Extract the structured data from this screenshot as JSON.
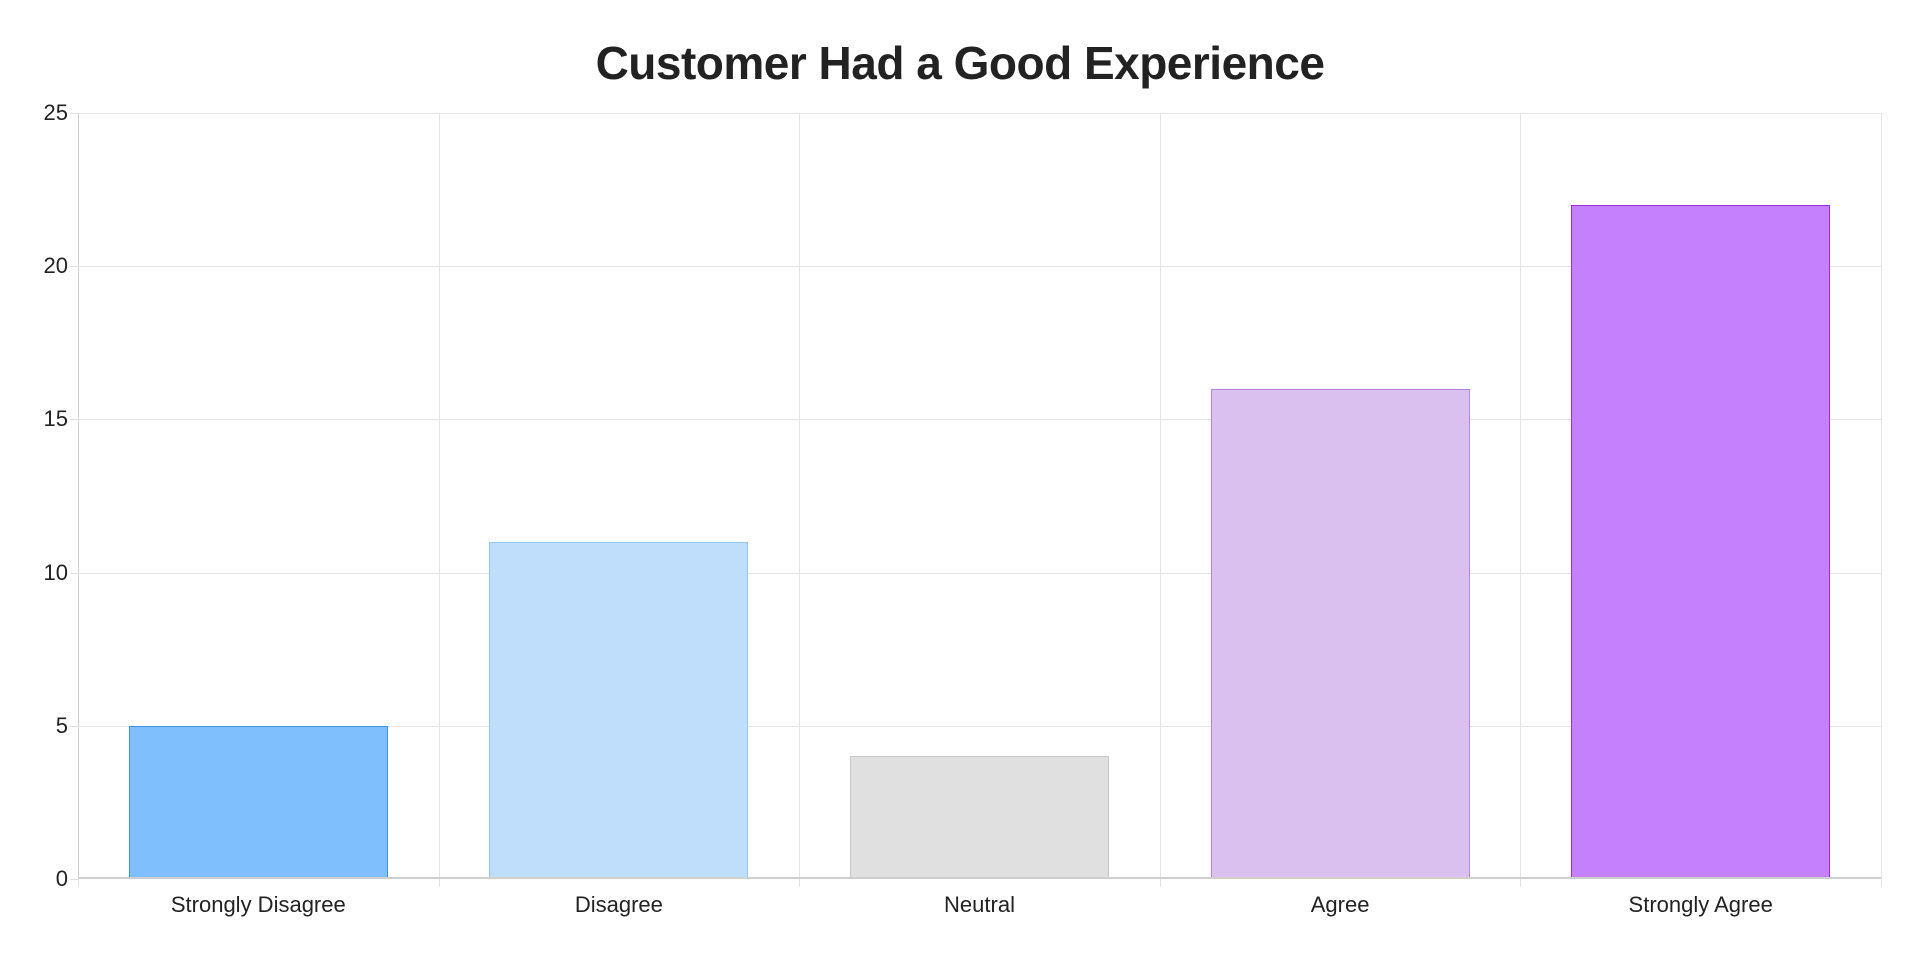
{
  "chart_data": {
    "type": "bar",
    "title": "Customer Had a Good Experience",
    "xlabel": "",
    "ylabel": "",
    "categories": [
      "Strongly Disagree",
      "Disagree",
      "Neutral",
      "Agree",
      "Strongly Agree"
    ],
    "values": [
      5,
      11,
      4,
      16,
      22
    ],
    "ylim": [
      0,
      25
    ],
    "yticks": [
      0,
      5,
      10,
      15,
      20,
      25
    ],
    "grid": true,
    "legend": "none",
    "colors": {
      "fill": [
        "#80bffd",
        "#bfdefc",
        "#e0e0e0",
        "#d9c0ee",
        "#c580fe"
      ],
      "border": [
        "#3f93e6",
        "#95c6f5",
        "#c8c8c8",
        "#b683e0",
        "#9a2ee6"
      ]
    }
  },
  "ui": {
    "title": "Customer Had a Good Experience",
    "yticks": [
      "0",
      "5",
      "10",
      "15",
      "20",
      "25"
    ],
    "xlabels": [
      "Strongly Disagree",
      "Disagree",
      "Neutral",
      "Agree",
      "Strongly Agree"
    ]
  }
}
